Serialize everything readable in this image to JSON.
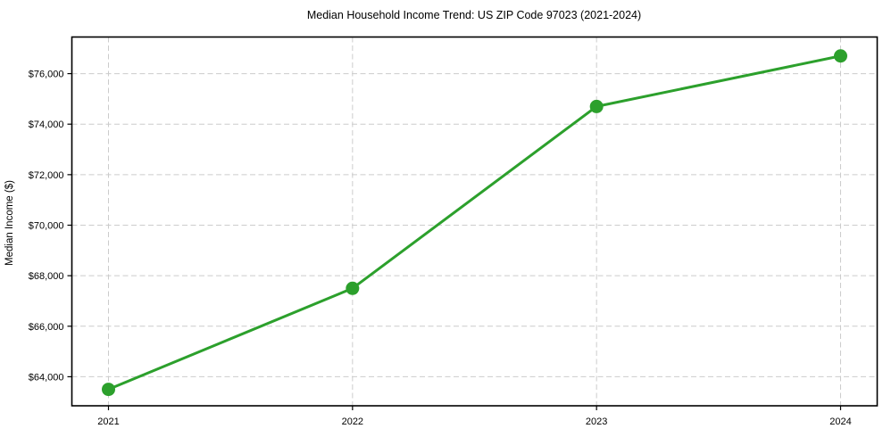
{
  "chart_data": {
    "type": "line",
    "title": "Median Household Income Trend: US ZIP Code 97023 (2021-2024)",
    "xlabel": "",
    "ylabel": "Median Income ($)",
    "x": [
      2021,
      2022,
      2023,
      2024
    ],
    "x_tick_labels": [
      "2021",
      "2022",
      "2023",
      "2024"
    ],
    "series": [
      {
        "name": "Median Household Income",
        "values": [
          63500,
          67500,
          74700,
          76700
        ]
      }
    ],
    "y_ticks": [
      64000,
      66000,
      68000,
      70000,
      72000,
      74000,
      76000
    ],
    "y_tick_labels": [
      "$64,000",
      "$66,000",
      "$68,000",
      "$70,000",
      "$72,000",
      "$74,000",
      "$76,000"
    ],
    "xlim": [
      2020.85,
      2024.15
    ],
    "ylim": [
      62850,
      77450
    ],
    "grid": true,
    "grid_style": "dashed",
    "legend": false,
    "marker": "circle",
    "colors": {
      "line": "#2ca02c",
      "marker": "#2ca02c",
      "grid": "#cccccc",
      "axis": "#000000",
      "text": "#000000",
      "background": "#ffffff"
    }
  }
}
